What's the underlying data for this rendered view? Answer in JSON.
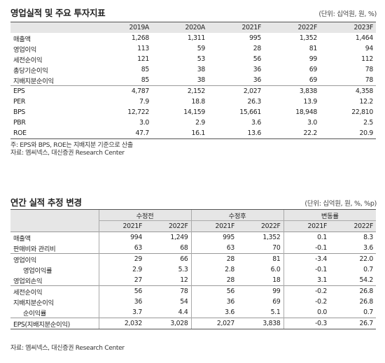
{
  "t1": {
    "title": "영업실적 및 주요 투자지표",
    "unit": "(단위: 십억원, 원, %)",
    "years": [
      "2019A",
      "2020A",
      "2021F",
      "2022F",
      "2023F"
    ],
    "group1": [
      {
        "label": "매출액",
        "v": [
          "1,268",
          "1,311",
          "995",
          "1,352",
          "1,464"
        ]
      },
      {
        "label": "영업이익",
        "v": [
          "113",
          "59",
          "28",
          "81",
          "94"
        ]
      },
      {
        "label": "세전순이익",
        "v": [
          "121",
          "53",
          "56",
          "99",
          "112"
        ]
      },
      {
        "label": "총당기순이익",
        "v": [
          "85",
          "38",
          "36",
          "69",
          "78"
        ]
      },
      {
        "label": "지배지분순이익",
        "v": [
          "85",
          "38",
          "36",
          "69",
          "78"
        ]
      }
    ],
    "group2": [
      {
        "label": "EPS",
        "v": [
          "4,787",
          "2,152",
          "2,027",
          "3,838",
          "4,358"
        ]
      },
      {
        "label": "PER",
        "v": [
          "7.9",
          "18.8",
          "26.3",
          "13.9",
          "12.2"
        ]
      },
      {
        "label": "BPS",
        "v": [
          "12,722",
          "14,159",
          "15,661",
          "18,948",
          "22,810"
        ]
      },
      {
        "label": "PBR",
        "v": [
          "3.0",
          "2.9",
          "3.6",
          "3.0",
          "2.5"
        ]
      },
      {
        "label": "ROE",
        "v": [
          "47.7",
          "16.1",
          "13.6",
          "22.2",
          "20.9"
        ]
      }
    ],
    "note1": "주: EPS와 BPS, ROE는 지배지분 기준으로 산출",
    "note2": "자료: 엠씨넥스, 대신증권 Research Center"
  },
  "t2": {
    "title": "연간 실적 추정 변경",
    "unit": "(단위: 십억원, 원, %, %p)",
    "groups": [
      "수정전",
      "수정후",
      "변동률"
    ],
    "years": [
      "2021F",
      "2022F",
      "2021F",
      "2022F",
      "2021F",
      "2022F"
    ],
    "rows": [
      {
        "label": "매출액",
        "sub": false,
        "v": [
          "994",
          "1,249",
          "995",
          "1,352",
          "0.1",
          "8.3"
        ]
      },
      {
        "label": "판매비와 관리비",
        "sub": false,
        "v": [
          "63",
          "68",
          "63",
          "70",
          "-0.1",
          "3.6"
        ]
      },
      {
        "label": "영업이익",
        "sub": false,
        "v": [
          "29",
          "66",
          "28",
          "81",
          "-3.4",
          "22.0"
        ]
      },
      {
        "label": "영업이익률",
        "sub": true,
        "v": [
          "2.9",
          "5.3",
          "2.8",
          "6.0",
          "-0.1",
          "0.7"
        ]
      },
      {
        "label": "영업외손익",
        "sub": false,
        "v": [
          "27",
          "12",
          "28",
          "18",
          "3.1",
          "54.2"
        ]
      },
      {
        "label": "세전순이익",
        "sub": false,
        "v": [
          "56",
          "78",
          "56",
          "99",
          "-0.2",
          "26.8"
        ]
      },
      {
        "label": "지배지분순이익",
        "sub": false,
        "v": [
          "36",
          "54",
          "36",
          "69",
          "-0.2",
          "26.8"
        ]
      },
      {
        "label": "순이익률",
        "sub": true,
        "v": [
          "3.7",
          "4.4",
          "3.6",
          "5.1",
          "0.0",
          "0.7"
        ]
      },
      {
        "label": "EPS(지배지분순이익)",
        "sub": false,
        "v": [
          "2,032",
          "3,028",
          "2,027",
          "3,838",
          "-0.3",
          "26.7"
        ]
      }
    ],
    "source": "자료: 엠씨넥스, 대신증권 Research Center"
  }
}
